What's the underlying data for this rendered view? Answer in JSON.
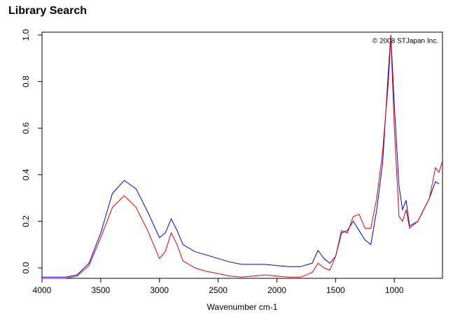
{
  "chart_data": {
    "type": "line",
    "title": "Library Search",
    "annotation": "© 2008 STJapan Inc.",
    "x_label": "Wavenumber cm-1",
    "x": [
      4000,
      3800,
      3700,
      3600,
      3500,
      3400,
      3300,
      3200,
      3100,
      3000,
      2950,
      2900,
      2850,
      2800,
      2700,
      2600,
      2500,
      2400,
      2300,
      2200,
      2100,
      2000,
      1900,
      1800,
      1700,
      1650,
      1600,
      1550,
      1500,
      1450,
      1400,
      1350,
      1300,
      1250,
      1200,
      1150,
      1100,
      1050,
      1030,
      1000,
      960,
      930,
      900,
      870,
      800,
      700,
      650,
      620,
      590
    ],
    "series": [
      {
        "color": "#0000dd",
        "values": [
          -0.04,
          -0.04,
          -0.03,
          0.02,
          0.15,
          0.32,
          0.375,
          0.34,
          0.24,
          0.13,
          0.15,
          0.21,
          0.16,
          0.1,
          0.07,
          0.055,
          0.04,
          0.025,
          0.015,
          0.015,
          0.015,
          0.01,
          0.005,
          0.005,
          0.02,
          0.075,
          0.04,
          0.02,
          0.05,
          0.15,
          0.16,
          0.2,
          0.16,
          0.12,
          0.1,
          0.25,
          0.45,
          0.85,
          1.0,
          0.7,
          0.35,
          0.25,
          0.29,
          0.18,
          0.2,
          0.3,
          0.37,
          0.36,
          null
        ]
      },
      {
        "color": "#dd0000",
        "values": [
          -0.045,
          -0.045,
          -0.035,
          0.01,
          0.13,
          0.26,
          0.31,
          0.26,
          0.16,
          0.04,
          0.07,
          0.15,
          0.1,
          0.03,
          0.0,
          -0.015,
          -0.025,
          -0.035,
          -0.04,
          -0.035,
          -0.03,
          -0.035,
          -0.04,
          -0.04,
          -0.02,
          0.02,
          0.0,
          -0.01,
          0.05,
          0.16,
          0.15,
          0.22,
          0.23,
          0.17,
          0.17,
          0.3,
          0.5,
          0.8,
          0.99,
          0.6,
          0.22,
          0.2,
          0.25,
          0.17,
          0.2,
          0.3,
          0.43,
          0.41,
          0.46
        ]
      }
    ],
    "xlim": [
      4000,
      590
    ],
    "xticks": [
      4000,
      3500,
      3000,
      2500,
      2000,
      1500,
      1000
    ],
    "ylim": [
      -0.045,
      1.012
    ],
    "yticks": [
      {
        "value": 0,
        "label": "0.0"
      },
      0.2,
      0.4,
      0.6,
      0.8,
      {
        "value": 1,
        "label": "1.0"
      }
    ]
  }
}
